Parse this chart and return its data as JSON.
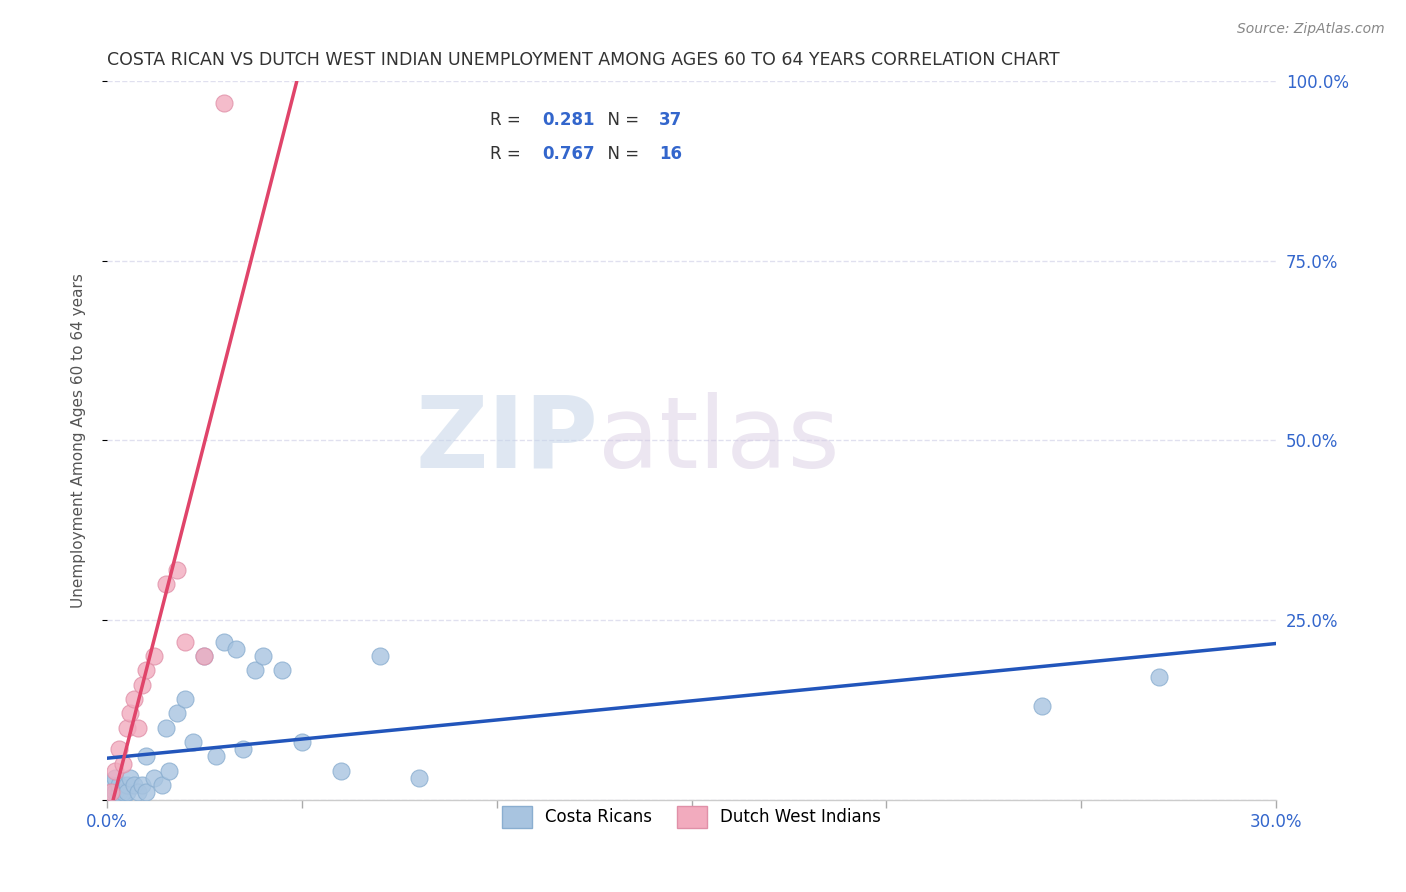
{
  "title": "COSTA RICAN VS DUTCH WEST INDIAN UNEMPLOYMENT AMONG AGES 60 TO 64 YEARS CORRELATION CHART",
  "source": "Source: ZipAtlas.com",
  "ylabel": "Unemployment Among Ages 60 to 64 years",
  "xlim": [
    0,
    0.3
  ],
  "ylim": [
    0,
    1.0
  ],
  "xticks": [
    0.0,
    0.05,
    0.1,
    0.15,
    0.2,
    0.25,
    0.3
  ],
  "yticks": [
    0.0,
    0.25,
    0.5,
    0.75,
    1.0
  ],
  "xtick_labels": [
    "0.0%",
    "",
    "",
    "",
    "",
    "",
    "30.0%"
  ],
  "ytick_labels_right": [
    "",
    "25.0%",
    "50.0%",
    "75.0%",
    "100.0%"
  ],
  "blue_scatter_color": "#A8C4E0",
  "pink_scatter_color": "#F2ABBE",
  "blue_line_color": "#2255BB",
  "pink_line_color": "#E0446A",
  "blue_edge_color": "#8AAED0",
  "pink_edge_color": "#E090A8",
  "r_blue": 0.281,
  "n_blue": 37,
  "r_pink": 0.767,
  "n_pink": 16,
  "watermark_zip": "ZIP",
  "watermark_atlas": "atlas",
  "legend_label_blue": "Costa Ricans",
  "legend_label_pink": "Dutch West Indians",
  "costa_rican_x": [
    0.001,
    0.001,
    0.002,
    0.002,
    0.003,
    0.003,
    0.004,
    0.004,
    0.005,
    0.005,
    0.006,
    0.007,
    0.008,
    0.009,
    0.01,
    0.01,
    0.012,
    0.014,
    0.015,
    0.016,
    0.018,
    0.02,
    0.022,
    0.025,
    0.028,
    0.03,
    0.033,
    0.035,
    0.038,
    0.04,
    0.045,
    0.05,
    0.06,
    0.07,
    0.08,
    0.24,
    0.27
  ],
  "costa_rican_y": [
    0.01,
    0.02,
    0.01,
    0.03,
    0.01,
    0.02,
    0.0,
    0.01,
    0.02,
    0.01,
    0.03,
    0.02,
    0.01,
    0.02,
    0.01,
    0.06,
    0.03,
    0.02,
    0.1,
    0.04,
    0.12,
    0.14,
    0.08,
    0.2,
    0.06,
    0.22,
    0.21,
    0.07,
    0.18,
    0.2,
    0.18,
    0.08,
    0.04,
    0.2,
    0.03,
    0.13,
    0.17
  ],
  "dutch_x": [
    0.001,
    0.002,
    0.003,
    0.004,
    0.005,
    0.006,
    0.007,
    0.008,
    0.009,
    0.01,
    0.012,
    0.015,
    0.018,
    0.02,
    0.025,
    0.03
  ],
  "dutch_y": [
    0.01,
    0.04,
    0.07,
    0.05,
    0.1,
    0.12,
    0.14,
    0.1,
    0.16,
    0.18,
    0.2,
    0.3,
    0.32,
    0.22,
    0.2,
    0.97
  ],
  "background_color": "#FFFFFF",
  "grid_color": "#DDDDEE",
  "tick_color": "#AAAAAA",
  "text_color": "#333333",
  "blue_text_color": "#3366CC",
  "axis_label_color": "#555555"
}
